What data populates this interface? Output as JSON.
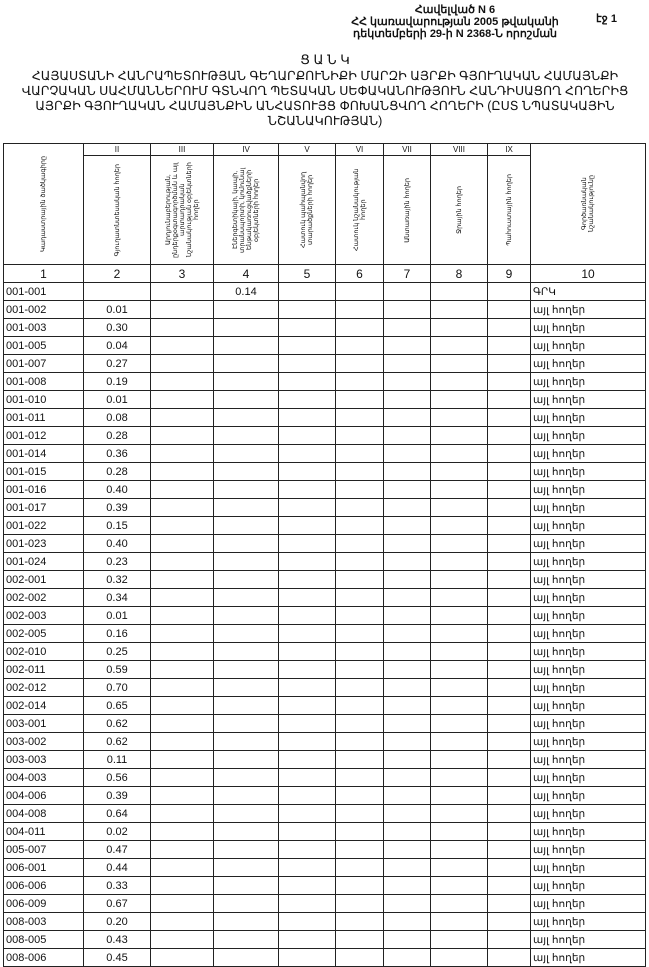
{
  "header": {
    "lines": [
      "Հավելված N 6",
      "ՀՀ կառավարության 2005 թվականի",
      "դեկտեմբերի 29-ի N 2368-Ն որոշման"
    ],
    "page": "էջ 1"
  },
  "title": {
    "heading": "Ց Ա Ն Կ",
    "text": "ՀԱՅԱՍՏԱՆԻ ՀԱՆՐԱՊԵՏՈՒԹՅԱՆ ԳԵՂԱՐՔՈՒՆԻՔԻ ՄԱՐԶԻ ԱՅՐՔԻ ԳՅՈՒՂԱԿԱՆ ՀԱՄԱՅՆՔԻ ՎԱՐՉԱԿԱՆ ՍԱՀՄԱՆՆԵՐՈՒՄ ԳՏՆՎՈՂ ՊԵՏԱԿԱՆ ՍԵՓԱԿԱՆՈՒԹՅՈՒՆ ՀԱՆԴԻՍԱՑՈՂ ՀՈՂԵՐԻՑ ԱՅՐՔԻ ԳՅՈՒՂԱԿԱՆ ՀԱՄԱՅՆՔԻՆ ԱՆՀԱՏՈՒՅՑ ՓՈԽԱՆՑՎՈՂ ՀՈՂԵՐԻ (ԸՍՏ ՆՊԱՏԱԿԱՅԻՆ ՆՇԱՆԱԿՈՒԹՅԱՆ)"
  },
  "table": {
    "roman": [
      "II",
      "III",
      "IV",
      "V",
      "VI",
      "VII",
      "VIII",
      "IX"
    ],
    "columns": [
      "Կադաստրային ծածկագիրը",
      "Գյուղատնտեսական հողեր",
      "Արդյունաբերության, ընդերքօգտագործման և այլ արտադրական նշանակության օբյեկտների հողեր",
      "Էներգետիկայի, կապի, տրանսպորտի, կոմունալ ենթակառուցվածքների օբյեկտների հողեր",
      "Հատուկ պահպանվող տարածքների հողեր",
      "Հատուկ նշանակության հողեր",
      "Անտառային հողեր",
      "Ջրային հողեր",
      "Պահուստային հողեր",
      "Գործառնական նշանակությունը"
    ],
    "numbers": [
      "1",
      "2",
      "3",
      "4",
      "5",
      "6",
      "7",
      "8",
      "9",
      "10"
    ],
    "rows": [
      [
        "001-001",
        "",
        "",
        "0.14",
        "",
        "",
        "",
        "",
        "",
        "ԳՐԿ"
      ],
      [
        "001-002",
        "0.01",
        "",
        "",
        "",
        "",
        "",
        "",
        "",
        "այլ հողեր"
      ],
      [
        "001-003",
        "0.30",
        "",
        "",
        "",
        "",
        "",
        "",
        "",
        "այլ հողեր"
      ],
      [
        "001-005",
        "0.04",
        "",
        "",
        "",
        "",
        "",
        "",
        "",
        "այլ հողեր"
      ],
      [
        "001-007",
        "0.27",
        "",
        "",
        "",
        "",
        "",
        "",
        "",
        "այլ հողեր"
      ],
      [
        "001-008",
        "0.19",
        "",
        "",
        "",
        "",
        "",
        "",
        "",
        "այլ հողեր"
      ],
      [
        "001-010",
        "0.01",
        "",
        "",
        "",
        "",
        "",
        "",
        "",
        "այլ հողեր"
      ],
      [
        "001-011",
        "0.08",
        "",
        "",
        "",
        "",
        "",
        "",
        "",
        "այլ հողեր"
      ],
      [
        "001-012",
        "0.28",
        "",
        "",
        "",
        "",
        "",
        "",
        "",
        "այլ հողեր"
      ],
      [
        "001-014",
        "0.36",
        "",
        "",
        "",
        "",
        "",
        "",
        "",
        "այլ հողեր"
      ],
      [
        "001-015",
        "0.28",
        "",
        "",
        "",
        "",
        "",
        "",
        "",
        "այլ հողեր"
      ],
      [
        "001-016",
        "0.40",
        "",
        "",
        "",
        "",
        "",
        "",
        "",
        "այլ հողեր"
      ],
      [
        "001-017",
        "0.39",
        "",
        "",
        "",
        "",
        "",
        "",
        "",
        "այլ հողեր"
      ],
      [
        "001-022",
        "0.15",
        "",
        "",
        "",
        "",
        "",
        "",
        "",
        "այլ հողեր"
      ],
      [
        "001-023",
        "0.40",
        "",
        "",
        "",
        "",
        "",
        "",
        "",
        "այլ հողեր"
      ],
      [
        "001-024",
        "0.23",
        "",
        "",
        "",
        "",
        "",
        "",
        "",
        "այլ հողեր"
      ],
      [
        "002-001",
        "0.32",
        "",
        "",
        "",
        "",
        "",
        "",
        "",
        "այլ հողեր"
      ],
      [
        "002-002",
        "0.34",
        "",
        "",
        "",
        "",
        "",
        "",
        "",
        "այլ հողեր"
      ],
      [
        "002-003",
        "0.01",
        "",
        "",
        "",
        "",
        "",
        "",
        "",
        "այլ հողեր"
      ],
      [
        "002-005",
        "0.16",
        "",
        "",
        "",
        "",
        "",
        "",
        "",
        "այլ հողեր"
      ],
      [
        "002-010",
        "0.25",
        "",
        "",
        "",
        "",
        "",
        "",
        "",
        "այլ հողեր"
      ],
      [
        "002-011",
        "0.59",
        "",
        "",
        "",
        "",
        "",
        "",
        "",
        "այլ հողեր"
      ],
      [
        "002-012",
        "0.70",
        "",
        "",
        "",
        "",
        "",
        "",
        "",
        "այլ հողեր"
      ],
      [
        "002-014",
        "0.65",
        "",
        "",
        "",
        "",
        "",
        "",
        "",
        "այլ հողեր"
      ],
      [
        "003-001",
        "0.62",
        "",
        "",
        "",
        "",
        "",
        "",
        "",
        "այլ հողեր"
      ],
      [
        "003-002",
        "0.62",
        "",
        "",
        "",
        "",
        "",
        "",
        "",
        "այլ հողեր"
      ],
      [
        "003-003",
        "0.11",
        "",
        "",
        "",
        "",
        "",
        "",
        "",
        "այլ հողեր"
      ],
      [
        "004-003",
        "0.56",
        "",
        "",
        "",
        "",
        "",
        "",
        "",
        "այլ հողեր"
      ],
      [
        "004-006",
        "0.39",
        "",
        "",
        "",
        "",
        "",
        "",
        "",
        "այլ հողեր"
      ],
      [
        "004-008",
        "0.64",
        "",
        "",
        "",
        "",
        "",
        "",
        "",
        "այլ հողեր"
      ],
      [
        "004-011",
        "0.02",
        "",
        "",
        "",
        "",
        "",
        "",
        "",
        "այլ հողեր"
      ],
      [
        "005-007",
        "0.47",
        "",
        "",
        "",
        "",
        "",
        "",
        "",
        "այլ հողեր"
      ],
      [
        "006-001",
        "0.44",
        "",
        "",
        "",
        "",
        "",
        "",
        "",
        "այլ հողեր"
      ],
      [
        "006-006",
        "0.33",
        "",
        "",
        "",
        "",
        "",
        "",
        "",
        "այլ հողեր"
      ],
      [
        "006-009",
        "0.67",
        "",
        "",
        "",
        "",
        "",
        "",
        "",
        "այլ հողեր"
      ],
      [
        "008-003",
        "0.20",
        "",
        "",
        "",
        "",
        "",
        "",
        "",
        "այլ հողեր"
      ],
      [
        "008-005",
        "0.43",
        "",
        "",
        "",
        "",
        "",
        "",
        "",
        "այլ հողեր"
      ],
      [
        "008-006",
        "0.45",
        "",
        "",
        "",
        "",
        "",
        "",
        "",
        "այլ հողեր"
      ]
    ]
  }
}
